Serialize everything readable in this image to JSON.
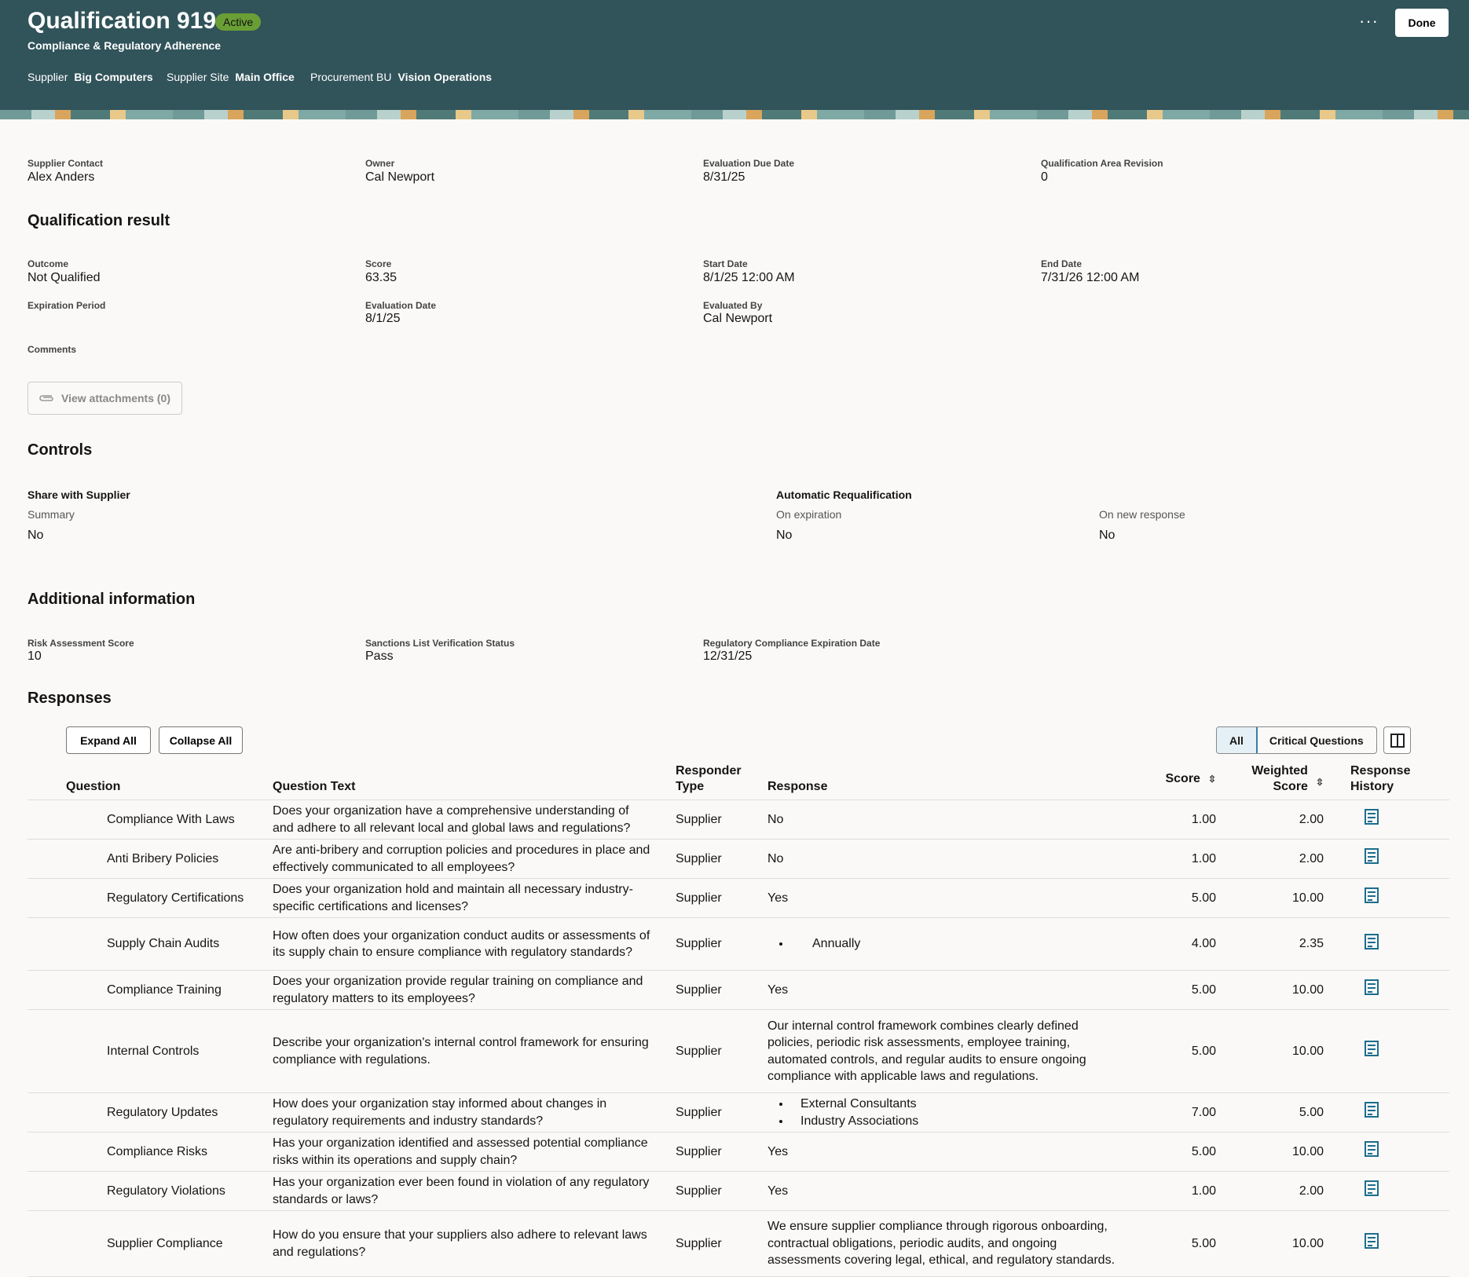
{
  "header": {
    "title": "Qualification 919",
    "status": "Active",
    "subtitle": "Compliance & Regulatory Adherence",
    "meta": [
      {
        "label": "Supplier",
        "value": "Big Computers"
      },
      {
        "label": "Supplier Site",
        "value": "Main Office"
      },
      {
        "label": "Procurement BU",
        "value": "Vision Operations"
      }
    ],
    "more_label": "···",
    "done_label": "Done"
  },
  "summary": [
    {
      "label": "Supplier Contact",
      "value": "Alex Anders"
    },
    {
      "label": "Owner",
      "value": "Cal Newport"
    },
    {
      "label": "Evaluation Due Date",
      "value": "8/31/25"
    },
    {
      "label": "Qualification Area Revision",
      "value": "0"
    }
  ],
  "result": {
    "title": "Qualification result",
    "fields": [
      {
        "label": "Outcome",
        "value": "Not Qualified"
      },
      {
        "label": "Score",
        "value": "63.35"
      },
      {
        "label": "Start Date",
        "value": "8/1/25 12:00 AM"
      },
      {
        "label": "End Date",
        "value": "7/31/26 12:00 AM"
      },
      {
        "label": "Expiration Period",
        "value": ""
      },
      {
        "label": "Evaluation Date",
        "value": "8/1/25"
      },
      {
        "label": "Evaluated By",
        "value": "Cal Newport"
      }
    ],
    "comments_label": "Comments",
    "attachments_label": "View attachments (0)"
  },
  "controls": {
    "title": "Controls",
    "share_title": "Share with Supplier",
    "summary_label": "Summary",
    "summary_value": "No",
    "auto_title": "Automatic Requalification",
    "on_expiration_label": "On expiration",
    "on_expiration_value": "No",
    "on_new_response_label": "On new response",
    "on_new_response_value": "No"
  },
  "additional": {
    "title": "Additional information",
    "fields": [
      {
        "label": "Risk Assessment Score",
        "value": "10"
      },
      {
        "label": "Sanctions List Verification Status",
        "value": "Pass"
      },
      {
        "label": "Regulatory Compliance Expiration Date",
        "value": "12/31/25"
      }
    ]
  },
  "responses": {
    "title": "Responses",
    "expand_label": "Expand All",
    "collapse_label": "Collapse All",
    "filter_all": "All",
    "filter_critical": "Critical Questions",
    "accent": "#1c6d8c",
    "columns": [
      "Question",
      "Question Text",
      "Responder Type",
      "Response",
      "Score",
      "Weighted Score",
      "Response History"
    ],
    "rows": [
      {
        "q": "Compliance With Laws",
        "text": "Does your organization have a comprehensive understanding of and adhere to all relevant local and global laws and regulations?",
        "type": "Supplier",
        "response": "No",
        "score": "1.00",
        "weighted": "2.00"
      },
      {
        "q": "Anti Bribery Policies",
        "text": "Are anti-bribery and corruption policies and procedures in place and effectively communicated to all employees?",
        "type": "Supplier",
        "response": "No",
        "score": "1.00",
        "weighted": "2.00"
      },
      {
        "q": "Regulatory Certifications",
        "text": "Does your organization hold and maintain all necessary industry-specific certifications and licenses?",
        "type": "Supplier",
        "response": "Yes",
        "score": "5.00",
        "weighted": "10.00"
      },
      {
        "q": "Supply Chain Audits",
        "text": "How often does your organization conduct audits or assessments of its supply chain to ensure compliance with regulatory standards?",
        "type": "Supplier",
        "response_list": [
          "Annually"
        ],
        "score": "4.00",
        "weighted": "2.35"
      },
      {
        "q": "Compliance Training",
        "text": "Does your organization provide regular training on compliance and regulatory matters to its employees?",
        "type": "Supplier",
        "response": "Yes",
        "score": "5.00",
        "weighted": "10.00"
      },
      {
        "q": "Internal Controls",
        "text": "Describe your organization's internal control framework for ensuring compliance with regulations.",
        "type": "Supplier",
        "response": "Our internal control framework combines clearly defined policies, periodic risk assessments, employee training, automated controls, and regular audits to ensure ongoing compliance with applicable laws and regulations.",
        "score": "5.00",
        "weighted": "10.00"
      },
      {
        "q": "Regulatory Updates",
        "text": "How does your organization stay informed about changes in regulatory requirements and industry standards?",
        "type": "Supplier",
        "response_list": [
          "External Consultants",
          "Industry Associations"
        ],
        "score": "7.00",
        "weighted": "5.00"
      },
      {
        "q": "Compliance Risks",
        "text": "Has your organization identified and assessed potential compliance risks within its operations and supply chain?",
        "type": "Supplier",
        "response": "Yes",
        "score": "5.00",
        "weighted": "10.00"
      },
      {
        "q": "Regulatory Violations",
        "text": "Has your organization ever been found in violation of any regulatory standards or laws?",
        "type": "Supplier",
        "response": "Yes",
        "score": "1.00",
        "weighted": "2.00"
      },
      {
        "q": "Supplier Compliance",
        "text": "How do you ensure that your suppliers also adhere to relevant laws and regulations?",
        "type": "Supplier",
        "response": "We ensure supplier compliance through rigorous onboarding, contractual obligations, periodic audits, and ongoing assessments covering legal, ethical, and regulatory standards.",
        "score": "5.00",
        "weighted": "10.00"
      }
    ]
  }
}
